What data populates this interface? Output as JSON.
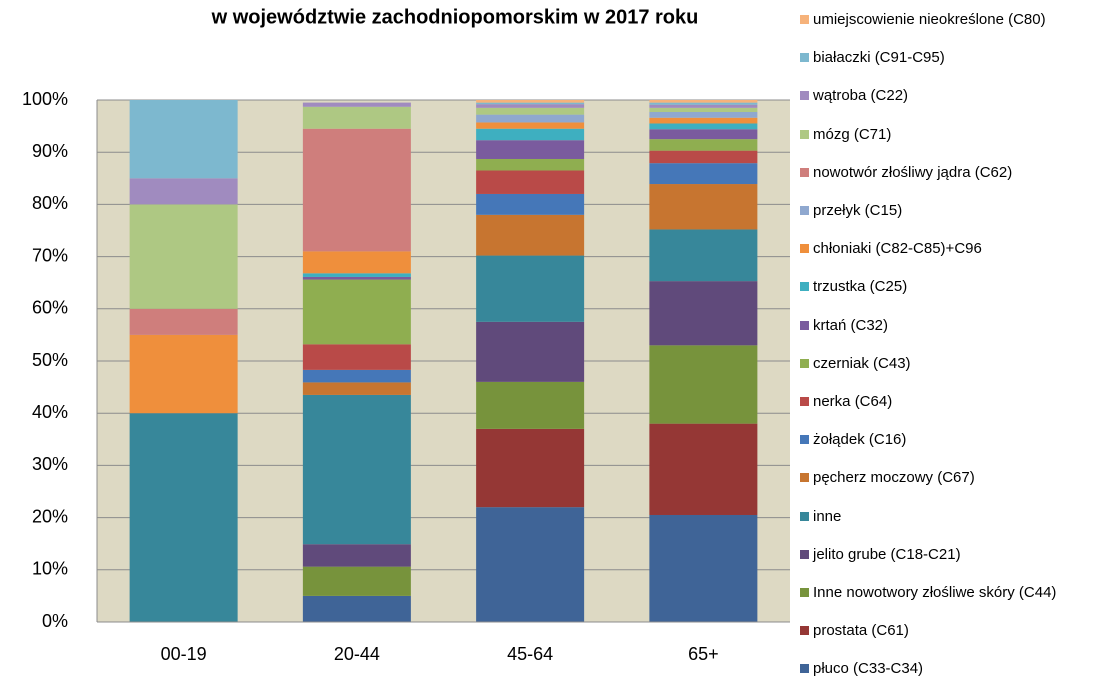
{
  "chart_data": {
    "type": "stacked_bar",
    "title": "w województwie zachodniopomorskim w 2017 roku",
    "categories": [
      "00-19",
      "20-44",
      "45-64",
      "65+"
    ],
    "ylim": [
      0,
      100
    ],
    "yticks": [
      {
        "value": 0,
        "label": "0%"
      },
      {
        "value": 10,
        "label": "10%"
      },
      {
        "value": 20,
        "label": "20%"
      },
      {
        "value": 30,
        "label": "30%"
      },
      {
        "value": 40,
        "label": "40%"
      },
      {
        "value": 50,
        "label": "50%"
      },
      {
        "value": 60,
        "label": "60%"
      },
      {
        "value": 70,
        "label": "70%"
      },
      {
        "value": 80,
        "label": "80%"
      },
      {
        "value": 90,
        "label": "90%"
      },
      {
        "value": 100,
        "label": "100%"
      }
    ],
    "grid": true,
    "background": "#ddd9c3",
    "series": [
      {
        "name": "płuco (C33-C34)",
        "color": "#3f6497",
        "values": [
          0,
          5,
          22,
          20.5
        ]
      },
      {
        "name": "prostata (C61)",
        "color": "#953735",
        "values": [
          0,
          0,
          15,
          17.5
        ]
      },
      {
        "name": "Inne nowotwory złośliwe skóry (C44)",
        "color": "#77933c",
        "values": [
          0,
          5.6,
          9,
          15
        ]
      },
      {
        "name": "jelito grube (C18-C21)",
        "color": "#604a7b",
        "values": [
          0,
          4.3,
          11.5,
          12.3
        ]
      },
      {
        "name": "inne",
        "color": "#37879a",
        "values": [
          40,
          28.6,
          12.7,
          9.9
        ]
      },
      {
        "name": "pęcherz moczowy (C67)",
        "color": "#c77530",
        "values": [
          0,
          2.4,
          7.8,
          8.7
        ]
      },
      {
        "name": "żołądek (C16)",
        "color": "#4577b8",
        "values": [
          0,
          2.4,
          4,
          4
        ]
      },
      {
        "name": "nerka (C64)",
        "color": "#b94a48",
        "values": [
          0,
          4.9,
          4.5,
          2.4
        ]
      },
      {
        "name": "czerniak (C43)",
        "color": "#8fae50",
        "values": [
          0,
          12.4,
          2.2,
          2.2
        ]
      },
      {
        "name": "krtań (C32)",
        "color": "#7a5b9e",
        "values": [
          0,
          0.5,
          3.6,
          1.9
        ]
      },
      {
        "name": "trzustka (C25)",
        "color": "#3eafc0",
        "values": [
          0,
          0.7,
          2.2,
          1.1
        ]
      },
      {
        "name": "chłoniaki (C82-C85)+C96",
        "color": "#ef8f3c",
        "values": [
          15,
          4.2,
          1.2,
          1.1
        ]
      },
      {
        "name": "przełyk (C15)",
        "color": "#8fa8cf",
        "values": [
          0,
          0,
          1.5,
          1.1
        ]
      },
      {
        "name": "nowotwór złośliwy jądra (C62)",
        "color": "#cf7e7c",
        "values": [
          5,
          23.5,
          0,
          0
        ]
      },
      {
        "name": "mózg (C71)",
        "color": "#aec883",
        "values": [
          20,
          4.2,
          1.3,
          0.8
        ]
      },
      {
        "name": "wątroba (C22)",
        "color": "#a08bbf",
        "values": [
          5,
          0.8,
          0.7,
          0.6
        ]
      },
      {
        "name": "białaczki (C91-C95)",
        "color": "#7db8cf",
        "values": [
          15,
          0,
          0.3,
          0.4
        ]
      },
      {
        "name": "umiejscowienie nieokreślone (C80)",
        "color": "#f6b27a",
        "values": [
          0,
          0,
          0.5,
          0.5
        ]
      }
    ]
  }
}
